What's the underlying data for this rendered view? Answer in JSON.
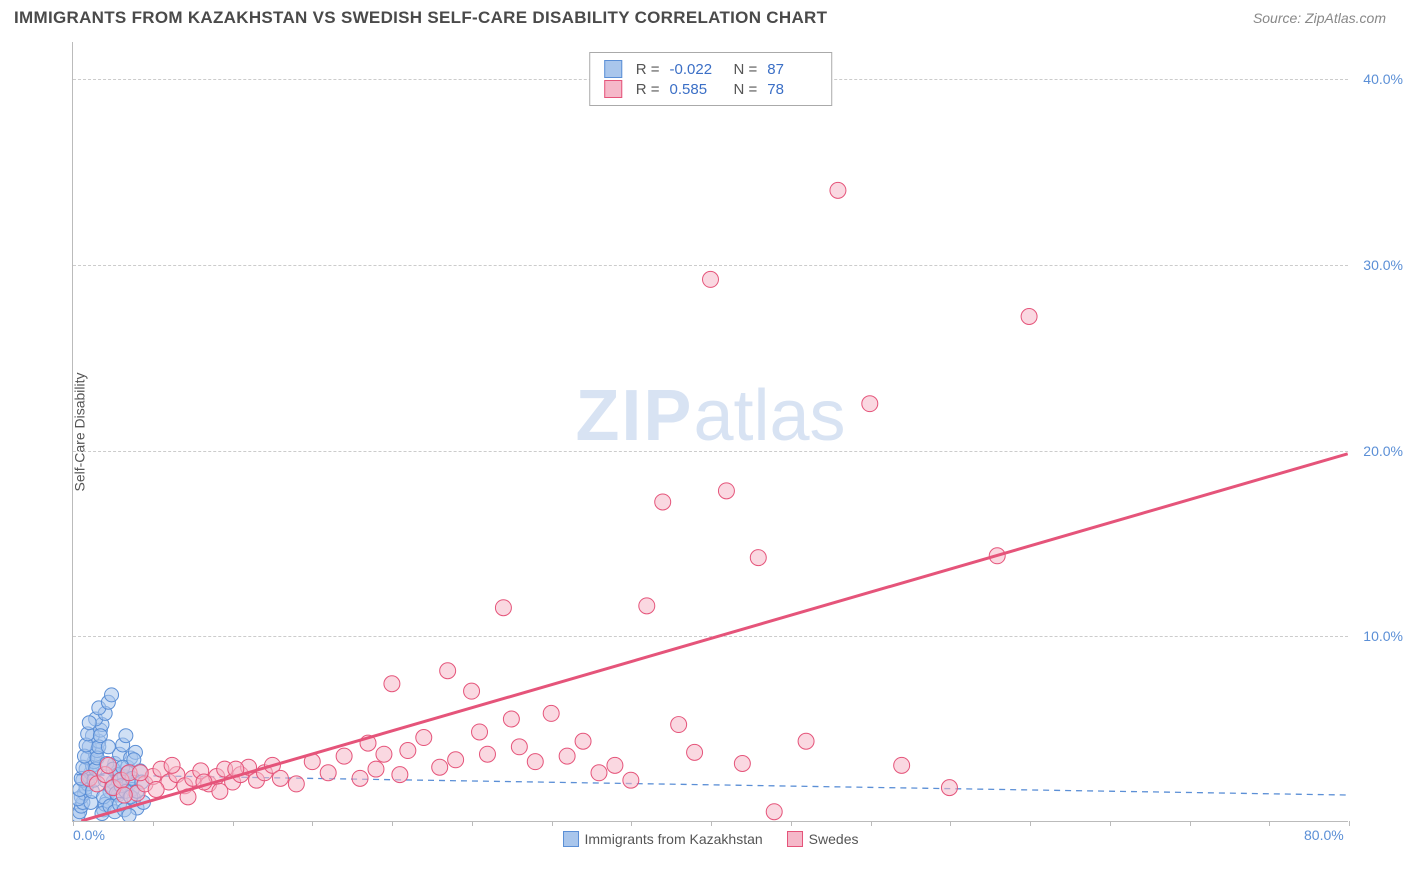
{
  "title": "IMMIGRANTS FROM KAZAKHSTAN VS SWEDISH SELF-CARE DISABILITY CORRELATION CHART",
  "source": "Source: ZipAtlas.com",
  "y_axis_label": "Self-Care Disability",
  "watermark": {
    "part1": "ZIP",
    "part2": "atlas"
  },
  "chart": {
    "type": "scatter",
    "xlim": [
      0,
      80
    ],
    "ylim": [
      0,
      42
    ],
    "y_ticks": [
      10.0,
      20.0,
      30.0,
      40.0
    ],
    "y_tick_labels": [
      "10.0%",
      "20.0%",
      "30.0%",
      "40.0%"
    ],
    "x_ticks": [
      0,
      5,
      10,
      15,
      20,
      25,
      30,
      35,
      40,
      45,
      50,
      55,
      60,
      65,
      70,
      75,
      80
    ],
    "x_tick_labels": {
      "0": "0.0%",
      "80": "80.0%"
    },
    "grid_color": "#cccccc",
    "axis_color": "#bbbbbb",
    "background_color": "#ffffff",
    "series": [
      {
        "id": "kazakhstan",
        "label": "Immigrants from Kazakhstan",
        "fill": "#a9c6ec",
        "stroke": "#5b8fd6",
        "fill_opacity": 0.55,
        "marker_radius": 7,
        "R": "-0.022",
        "N": "87",
        "trend": {
          "x1": 0.2,
          "y1": 2.5,
          "x2": 80,
          "y2": 1.4,
          "dash": "6,5",
          "width": 1.3
        },
        "points": [
          [
            0.3,
            0.3
          ],
          [
            0.4,
            0.5
          ],
          [
            0.5,
            0.8
          ],
          [
            0.6,
            1.0
          ],
          [
            0.5,
            1.3
          ],
          [
            0.7,
            1.5
          ],
          [
            0.8,
            1.8
          ],
          [
            0.9,
            2.0
          ],
          [
            0.6,
            2.2
          ],
          [
            1.0,
            2.4
          ],
          [
            1.1,
            2.6
          ],
          [
            0.8,
            2.8
          ],
          [
            1.2,
            3.0
          ],
          [
            1.3,
            3.2
          ],
          [
            0.9,
            3.4
          ],
          [
            1.4,
            3.6
          ],
          [
            1.5,
            3.8
          ],
          [
            1.0,
            4.0
          ],
          [
            1.6,
            4.3
          ],
          [
            1.2,
            4.6
          ],
          [
            1.7,
            4.9
          ],
          [
            1.8,
            5.2
          ],
          [
            1.4,
            5.5
          ],
          [
            2.0,
            5.8
          ],
          [
            1.6,
            6.1
          ],
          [
            2.2,
            6.4
          ],
          [
            2.4,
            6.8
          ],
          [
            1.9,
            0.6
          ],
          [
            2.1,
            1.1
          ],
          [
            2.3,
            1.6
          ],
          [
            2.5,
            2.1
          ],
          [
            2.7,
            2.6
          ],
          [
            2.0,
            0.9
          ],
          [
            2.8,
            1.4
          ],
          [
            3.0,
            1.9
          ],
          [
            2.6,
            3.1
          ],
          [
            3.2,
            2.4
          ],
          [
            2.9,
            3.6
          ],
          [
            3.4,
            2.9
          ],
          [
            3.1,
            4.1
          ],
          [
            3.6,
            3.4
          ],
          [
            3.3,
            4.6
          ],
          [
            3.8,
            1.2
          ],
          [
            3.5,
            2.0
          ],
          [
            4.0,
            0.7
          ],
          [
            3.7,
            1.7
          ],
          [
            4.2,
            2.7
          ],
          [
            3.9,
            3.7
          ],
          [
            4.4,
            1.0
          ],
          [
            0.3,
            1.2
          ],
          [
            0.4,
            1.7
          ],
          [
            0.5,
            2.3
          ],
          [
            0.6,
            2.9
          ],
          [
            0.7,
            3.5
          ],
          [
            0.8,
            4.1
          ],
          [
            0.9,
            4.7
          ],
          [
            1.0,
            5.3
          ],
          [
            1.1,
            1.0
          ],
          [
            1.2,
            1.6
          ],
          [
            1.3,
            2.2
          ],
          [
            1.4,
            2.8
          ],
          [
            1.5,
            3.4
          ],
          [
            1.6,
            4.0
          ],
          [
            1.7,
            4.6
          ],
          [
            1.8,
            0.4
          ],
          [
            1.9,
            1.3
          ],
          [
            2.0,
            2.2
          ],
          [
            2.1,
            3.1
          ],
          [
            2.2,
            4.0
          ],
          [
            2.3,
            0.8
          ],
          [
            2.4,
            1.8
          ],
          [
            2.5,
            2.8
          ],
          [
            2.6,
            0.5
          ],
          [
            2.7,
            1.5
          ],
          [
            2.8,
            2.5
          ],
          [
            2.9,
            0.9
          ],
          [
            3.0,
            1.9
          ],
          [
            3.1,
            2.9
          ],
          [
            3.2,
            0.6
          ],
          [
            3.3,
            1.6
          ],
          [
            3.4,
            2.6
          ],
          [
            3.5,
            0.3
          ],
          [
            3.6,
            1.3
          ],
          [
            3.7,
            2.3
          ],
          [
            3.8,
            3.3
          ],
          [
            4.0,
            1.6
          ],
          [
            4.3,
            2.1
          ]
        ]
      },
      {
        "id": "swedes",
        "label": "Swedes",
        "fill": "#f5b8c9",
        "stroke": "#e5547a",
        "fill_opacity": 0.55,
        "marker_radius": 8,
        "R": "0.585",
        "N": "78",
        "trend": {
          "x1": 0.5,
          "y1": 0.0,
          "x2": 80,
          "y2": 19.8,
          "dash": null,
          "width": 3
        },
        "points": [
          [
            1.0,
            2.3
          ],
          [
            1.5,
            2.0
          ],
          [
            2.0,
            2.5
          ],
          [
            2.5,
            1.8
          ],
          [
            3.0,
            2.2
          ],
          [
            3.5,
            2.6
          ],
          [
            4.0,
            1.5
          ],
          [
            4.5,
            2.0
          ],
          [
            5.0,
            2.4
          ],
          [
            5.5,
            2.8
          ],
          [
            6.0,
            2.1
          ],
          [
            6.5,
            2.5
          ],
          [
            7.0,
            1.9
          ],
          [
            7.5,
            2.3
          ],
          [
            8.0,
            2.7
          ],
          [
            8.5,
            2.0
          ],
          [
            9.0,
            2.4
          ],
          [
            9.5,
            2.8
          ],
          [
            10.0,
            2.1
          ],
          [
            10.5,
            2.5
          ],
          [
            11.0,
            2.9
          ],
          [
            11.5,
            2.2
          ],
          [
            12.0,
            2.6
          ],
          [
            12.5,
            3.0
          ],
          [
            13.0,
            2.3
          ],
          [
            14.0,
            2.0
          ],
          [
            15.0,
            3.2
          ],
          [
            16.0,
            2.6
          ],
          [
            17.0,
            3.5
          ],
          [
            18.0,
            2.3
          ],
          [
            18.5,
            4.2
          ],
          [
            19.0,
            2.8
          ],
          [
            19.5,
            3.6
          ],
          [
            20.0,
            7.4
          ],
          [
            20.5,
            2.5
          ],
          [
            21.0,
            3.8
          ],
          [
            22.0,
            4.5
          ],
          [
            23.0,
            2.9
          ],
          [
            23.5,
            8.1
          ],
          [
            24.0,
            3.3
          ],
          [
            25.0,
            7.0
          ],
          [
            25.5,
            4.8
          ],
          [
            26.0,
            3.6
          ],
          [
            27.0,
            11.5
          ],
          [
            27.5,
            5.5
          ],
          [
            28.0,
            4.0
          ],
          [
            29.0,
            3.2
          ],
          [
            30.0,
            5.8
          ],
          [
            31.0,
            3.5
          ],
          [
            32.0,
            4.3
          ],
          [
            33.0,
            2.6
          ],
          [
            34.0,
            3.0
          ],
          [
            35.0,
            2.2
          ],
          [
            36.0,
            11.6
          ],
          [
            37.0,
            17.2
          ],
          [
            38.0,
            5.2
          ],
          [
            39.0,
            3.7
          ],
          [
            40.0,
            29.2
          ],
          [
            41.0,
            17.8
          ],
          [
            42.0,
            3.1
          ],
          [
            43.0,
            14.2
          ],
          [
            44.0,
            0.5
          ],
          [
            46.0,
            4.3
          ],
          [
            48.0,
            34.0
          ],
          [
            50.0,
            22.5
          ],
          [
            52.0,
            3.0
          ],
          [
            55.0,
            1.8
          ],
          [
            58.0,
            14.3
          ],
          [
            60.0,
            27.2
          ],
          [
            2.2,
            3.0
          ],
          [
            3.2,
            1.4
          ],
          [
            4.2,
            2.6
          ],
          [
            5.2,
            1.7
          ],
          [
            6.2,
            3.0
          ],
          [
            7.2,
            1.3
          ],
          [
            8.2,
            2.1
          ],
          [
            9.2,
            1.6
          ],
          [
            10.2,
            2.8
          ]
        ]
      }
    ]
  },
  "bottom_legend": [
    {
      "label": "Immigrants from Kazakhstan",
      "fill": "#a9c6ec",
      "stroke": "#5b8fd6"
    },
    {
      "label": "Swedes",
      "fill": "#f5b8c9",
      "stroke": "#e5547a"
    }
  ]
}
